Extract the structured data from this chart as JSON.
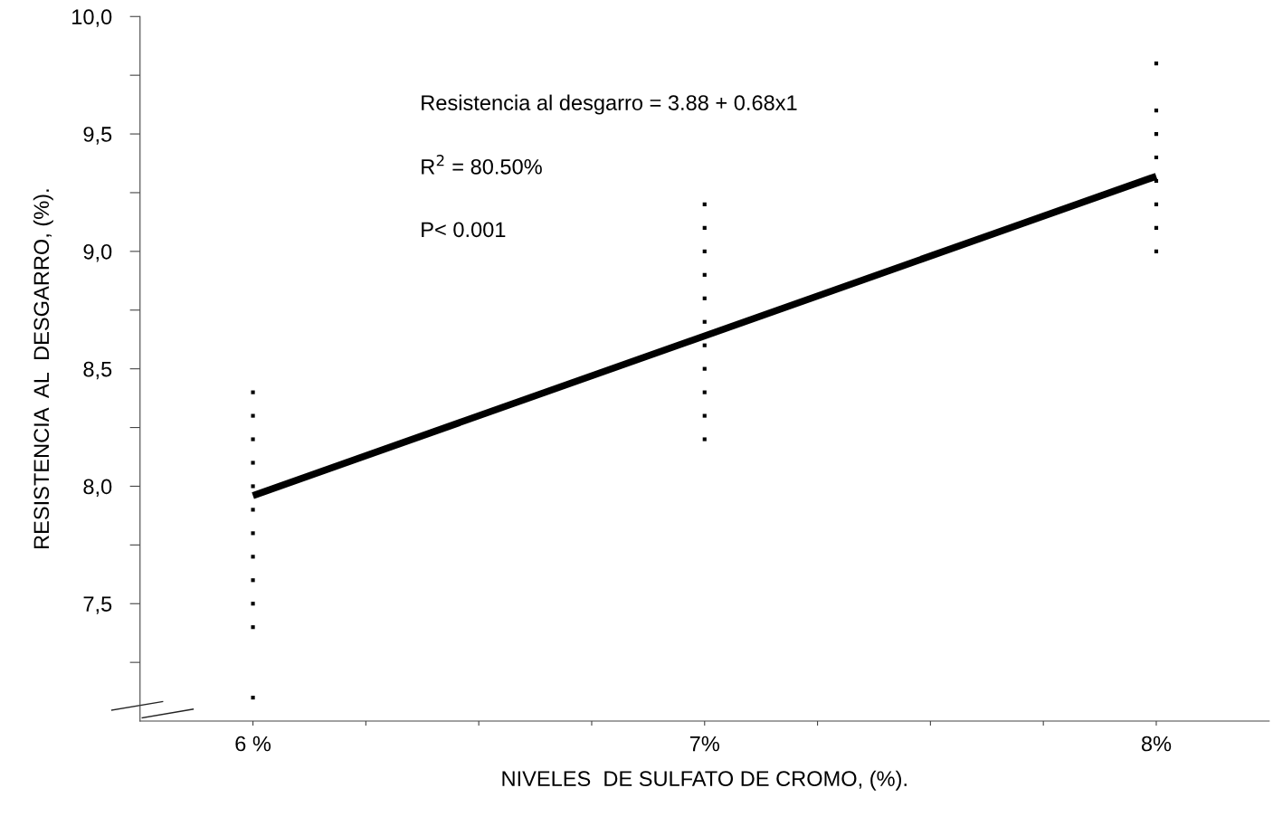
{
  "chart_data": {
    "type": "scatter",
    "xlabel": "NIVELES  DE SULFATO DE CROMO, (%).",
    "ylabel": "RESISTENCIA  AL  DESGARRO, (%).",
    "annotations": [
      "Resistencia al desgarro = 3.88 + 0.68x1",
      "R$^{2}$ = 80.50%",
      "P< 0.001"
    ],
    "marker": "square",
    "grid": false,
    "legend": false,
    "xlim": [
      5.75,
      8.25
    ],
    "xticks": [
      {
        "value": 6,
        "label": "6 %"
      },
      {
        "value": 6.25,
        "label": null
      },
      {
        "value": 6.5,
        "label": null
      },
      {
        "value": 6.75,
        "label": null
      },
      {
        "value": 7,
        "label": "7%"
      },
      {
        "value": 7.25,
        "label": null
      },
      {
        "value": 7.5,
        "label": null
      },
      {
        "value": 7.75,
        "label": null
      },
      {
        "value": 8,
        "label": "8%"
      }
    ],
    "ylim": [
      7.0,
      10.0
    ],
    "yticks": [
      {
        "value": 7.25,
        "label": null
      },
      {
        "value": 7.5,
        "label": "7,5"
      },
      {
        "value": 7.75,
        "label": null
      },
      {
        "value": 8.0,
        "label": "8,0"
      },
      {
        "value": 8.25,
        "label": null
      },
      {
        "value": 8.5,
        "label": "8,5"
      },
      {
        "value": 8.75,
        "label": null
      },
      {
        "value": 9.0,
        "label": "9,0"
      },
      {
        "value": 9.25,
        "label": null
      },
      {
        "value": 9.5,
        "label": "9,5"
      },
      {
        "value": 9.75,
        "label": null
      },
      {
        "value": 10.0,
        "label": "10,0"
      }
    ],
    "series": [
      {
        "color": "#000000",
        "x": [
          6,
          6,
          6,
          6,
          6,
          6,
          6,
          6,
          6,
          6,
          6,
          6,
          7,
          7,
          7,
          7,
          7,
          7,
          7,
          7,
          7,
          7,
          7,
          8,
          8,
          8,
          8,
          8,
          8,
          8,
          8
        ],
        "values": [
          8.4,
          8.3,
          8.2,
          8.1,
          8.0,
          7.9,
          7.8,
          7.7,
          7.6,
          7.5,
          7.4,
          7.1,
          9.2,
          9.1,
          9.0,
          8.9,
          8.8,
          8.7,
          8.6,
          8.5,
          8.4,
          8.3,
          8.2,
          9.8,
          9.6,
          9.5,
          9.4,
          9.3,
          9.2,
          9.1,
          9.0
        ]
      },
      {
        "type": "line",
        "color": "#000000",
        "marker": "none",
        "line_style": "solid",
        "x": [
          6,
          8
        ],
        "values": [
          7.96,
          9.32
        ]
      }
    ]
  }
}
